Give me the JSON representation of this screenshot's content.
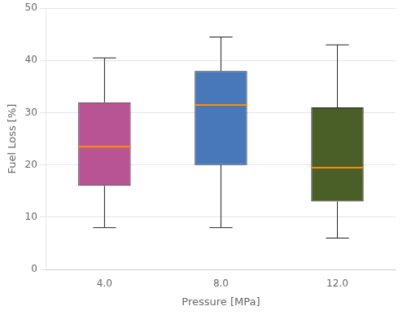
{
  "chart_data": {
    "type": "box",
    "xlabel": "Pressure [MPa]",
    "ylabel": "Fuel Loss [%]",
    "categories": [
      "4.0",
      "8.0",
      "12.0"
    ],
    "boxes": [
      {
        "whislo": 8.0,
        "q1": 16.0,
        "med": 23.5,
        "q3": 32.0,
        "whishi": 40.5
      },
      {
        "whislo": 8.0,
        "q1": 20.0,
        "med": 31.5,
        "q3": 38.0,
        "whishi": 44.5
      },
      {
        "whislo": 6.0,
        "q1": 13.0,
        "med": 19.5,
        "q3": 31.0,
        "whishi": 43.0
      }
    ],
    "colors": [
      "#b85494",
      "#4878b8",
      "#4a5e28"
    ],
    "ylim": [
      0,
      50
    ],
    "yticks": [
      0,
      10,
      20,
      30,
      40,
      50
    ],
    "grid": true
  }
}
